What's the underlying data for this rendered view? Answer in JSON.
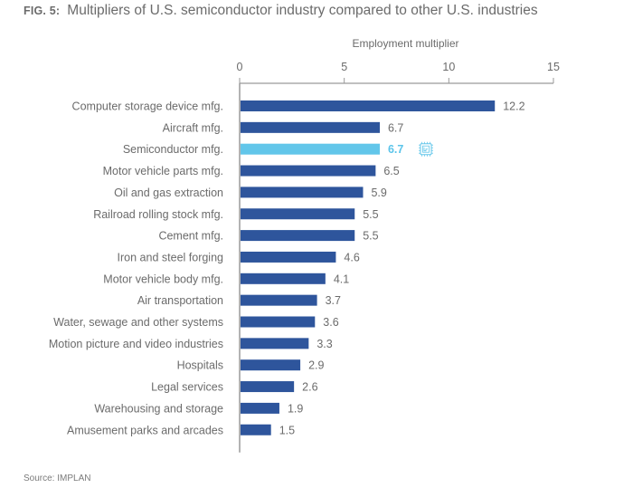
{
  "figure": {
    "label": "FIG. 5:",
    "title": "Multipliers of U.S. semiconductor industry compared to other U.S. industries",
    "source": "Source: IMPLAN"
  },
  "colors": {
    "bar": "#2e559c",
    "highlight": "#62c6ea",
    "axis": "#9a9a9a",
    "text": "#6b6b6b"
  },
  "chart_data": {
    "type": "bar",
    "orientation": "horizontal",
    "title": "Multipliers of U.S. semiconductor industry compared to other U.S. industries",
    "xlabel": "Employment multiplier",
    "ylabel": "",
    "xlim": [
      0,
      15
    ],
    "xticks": [
      0,
      5,
      10,
      15
    ],
    "axis_position": "top",
    "grid": false,
    "highlighted_category": "Semiconductor mfg.",
    "highlight_icon": "microchip-icon",
    "categories": [
      "Computer storage device mfg.",
      "Aircraft mfg.",
      "Semiconductor mfg.",
      "Motor vehicle parts mfg.",
      "Oil and gas extraction",
      "Railroad rolling stock mfg.",
      "Cement mfg.",
      "Iron and steel forging",
      "Motor vehicle body mfg.",
      "Air transportation",
      "Water, sewage and other systems",
      "Motion picture and video industries",
      "Hospitals",
      "Legal services",
      "Warehousing and storage",
      "Amusement parks and arcades"
    ],
    "values": [
      12.2,
      6.7,
      6.7,
      6.5,
      5.9,
      5.5,
      5.5,
      4.6,
      4.1,
      3.7,
      3.6,
      3.3,
      2.9,
      2.6,
      1.9,
      1.5
    ],
    "value_labels": [
      "12.2",
      "6.7",
      "6.7",
      "6.5",
      "5.9",
      "5.5",
      "5.5",
      "4.6",
      "4.1",
      "3.7",
      "3.6",
      "3.3",
      "2.9",
      "2.6",
      "1.9",
      "1.5"
    ],
    "source": "Source: IMPLAN"
  }
}
